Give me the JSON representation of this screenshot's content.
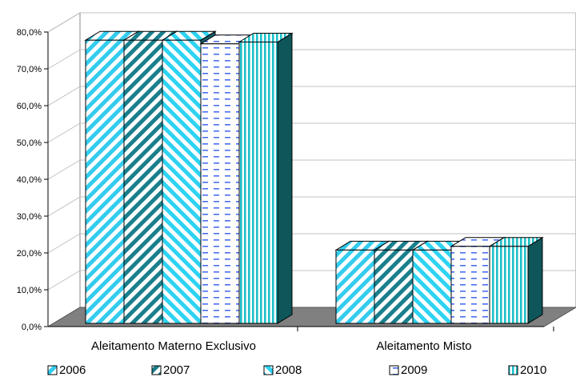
{
  "chart_data": {
    "type": "bar",
    "title": "",
    "xlabel": "",
    "ylabel": "",
    "categories": [
      "Aleitamento Materno Exclusivo",
      "Aleitamento Misto"
    ],
    "series": [
      {
        "name": "2006",
        "values": [
          78.0,
          21.0
        ],
        "color": "#33ccee",
        "pattern": "diag-up"
      },
      {
        "name": "2007",
        "values": [
          78.0,
          21.0
        ],
        "color": "#1a7f8c",
        "pattern": "diag-up-dark"
      },
      {
        "name": "2008",
        "values": [
          78.0,
          21.0
        ],
        "color": "#2ed3f2",
        "pattern": "diag-down"
      },
      {
        "name": "2009",
        "values": [
          77.0,
          22.0
        ],
        "color": "#4a6ef0",
        "pattern": "dashes"
      },
      {
        "name": "2010",
        "values": [
          77.5,
          22.0
        ],
        "color": "#20c0c8",
        "pattern": "vertical"
      }
    ],
    "yticks": [
      "0,0%",
      "10,0%",
      "20,0%",
      "30,0%",
      "40,0%",
      "50,0%",
      "60,0%",
      "70,0%",
      "80,0%"
    ],
    "ylim": [
      0,
      80
    ],
    "grid": true,
    "legend": "bottom"
  }
}
